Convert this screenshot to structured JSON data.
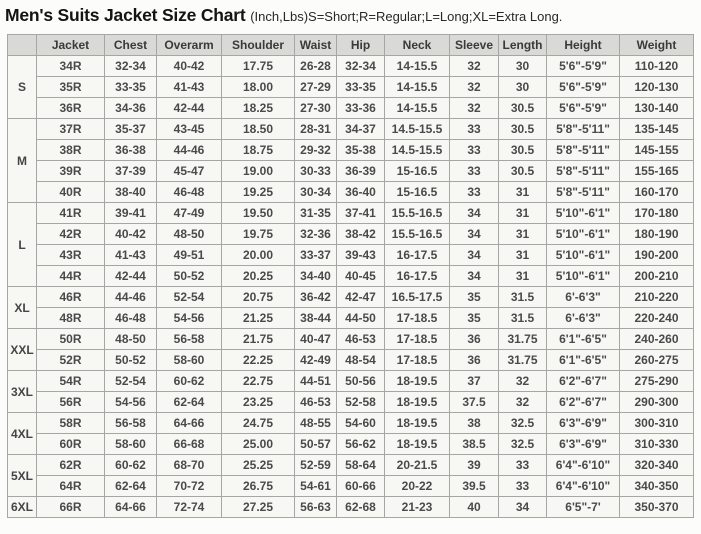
{
  "title": {
    "main": "Men's Suits Jacket Size Chart",
    "note": "(Inch,Lbs)S=Short;R=Regular;L=Long;XL=Extra Long."
  },
  "colors": {
    "header_bg": "#d9d9d6",
    "cell_bg": "#f7f7f4",
    "border": "#a6a6a4",
    "text": "#4a4a4a"
  },
  "table": {
    "columns": [
      "",
      "Jacket",
      "Chest",
      "Overarm",
      "Shoulder",
      "Waist",
      "Hip",
      "Neck",
      "Sleeve",
      "Length",
      "Height",
      "Weight"
    ],
    "groups": [
      {
        "size": "S",
        "rows": [
          [
            "34R",
            "32-34",
            "40-42",
            "17.75",
            "26-28",
            "32-34",
            "14-15.5",
            "32",
            "30",
            "5'6\"-5'9\"",
            "110-120"
          ],
          [
            "35R",
            "33-35",
            "41-43",
            "18.00",
            "27-29",
            "33-35",
            "14-15.5",
            "32",
            "30",
            "5'6\"-5'9\"",
            "120-130"
          ],
          [
            "36R",
            "34-36",
            "42-44",
            "18.25",
            "27-30",
            "33-36",
            "14-15.5",
            "32",
            "30.5",
            "5'6\"-5'9\"",
            "130-140"
          ]
        ]
      },
      {
        "size": "M",
        "rows": [
          [
            "37R",
            "35-37",
            "43-45",
            "18.50",
            "28-31",
            "34-37",
            "14.5-15.5",
            "33",
            "30.5",
            "5'8\"-5'11\"",
            "135-145"
          ],
          [
            "38R",
            "36-38",
            "44-46",
            "18.75",
            "29-32",
            "35-38",
            "14.5-15.5",
            "33",
            "30.5",
            "5'8\"-5'11\"",
            "145-155"
          ],
          [
            "39R",
            "37-39",
            "45-47",
            "19.00",
            "30-33",
            "36-39",
            "15-16.5",
            "33",
            "30.5",
            "5'8\"-5'11\"",
            "155-165"
          ],
          [
            "40R",
            "38-40",
            "46-48",
            "19.25",
            "30-34",
            "36-40",
            "15-16.5",
            "33",
            "31",
            "5'8\"-5'11\"",
            "160-170"
          ]
        ]
      },
      {
        "size": "L",
        "rows": [
          [
            "41R",
            "39-41",
            "47-49",
            "19.50",
            "31-35",
            "37-41",
            "15.5-16.5",
            "34",
            "31",
            "5'10\"-6'1\"",
            "170-180"
          ],
          [
            "42R",
            "40-42",
            "48-50",
            "19.75",
            "32-36",
            "38-42",
            "15.5-16.5",
            "34",
            "31",
            "5'10\"-6'1\"",
            "180-190"
          ],
          [
            "43R",
            "41-43",
            "49-51",
            "20.00",
            "33-37",
            "39-43",
            "16-17.5",
            "34",
            "31",
            "5'10\"-6'1\"",
            "190-200"
          ],
          [
            "44R",
            "42-44",
            "50-52",
            "20.25",
            "34-40",
            "40-45",
            "16-17.5",
            "34",
            "31",
            "5'10\"-6'1\"",
            "200-210"
          ]
        ]
      },
      {
        "size": "XL",
        "rows": [
          [
            "46R",
            "44-46",
            "52-54",
            "20.75",
            "36-42",
            "42-47",
            "16.5-17.5",
            "35",
            "31.5",
            "6'-6'3\"",
            "210-220"
          ],
          [
            "48R",
            "46-48",
            "54-56",
            "21.25",
            "38-44",
            "44-50",
            "17-18.5",
            "35",
            "31.5",
            "6'-6'3\"",
            "220-240"
          ]
        ]
      },
      {
        "size": "XXL",
        "rows": [
          [
            "50R",
            "48-50",
            "56-58",
            "21.75",
            "40-47",
            "46-53",
            "17-18.5",
            "36",
            "31.75",
            "6'1\"-6'5\"",
            "240-260"
          ],
          [
            "52R",
            "50-52",
            "58-60",
            "22.25",
            "42-49",
            "48-54",
            "17-18.5",
            "36",
            "31.75",
            "6'1\"-6'5\"",
            "260-275"
          ]
        ]
      },
      {
        "size": "3XL",
        "rows": [
          [
            "54R",
            "52-54",
            "60-62",
            "22.75",
            "44-51",
            "50-56",
            "18-19.5",
            "37",
            "32",
            "6'2\"-6'7\"",
            "275-290"
          ],
          [
            "56R",
            "54-56",
            "62-64",
            "23.25",
            "46-53",
            "52-58",
            "18-19.5",
            "37.5",
            "32",
            "6'2\"-6'7\"",
            "290-300"
          ]
        ]
      },
      {
        "size": "4XL",
        "rows": [
          [
            "58R",
            "56-58",
            "64-66",
            "24.75",
            "48-55",
            "54-60",
            "18-19.5",
            "38",
            "32.5",
            "6'3\"-6'9\"",
            "300-310"
          ],
          [
            "60R",
            "58-60",
            "66-68",
            "25.00",
            "50-57",
            "56-62",
            "18-19.5",
            "38.5",
            "32.5",
            "6'3\"-6'9\"",
            "310-330"
          ]
        ]
      },
      {
        "size": "5XL",
        "rows": [
          [
            "62R",
            "60-62",
            "68-70",
            "25.25",
            "52-59",
            "58-64",
            "20-21.5",
            "39",
            "33",
            "6'4\"-6'10\"",
            "320-340"
          ],
          [
            "64R",
            "62-64",
            "70-72",
            "26.75",
            "54-61",
            "60-66",
            "20-22",
            "39.5",
            "33",
            "6'4\"-6'10\"",
            "340-350"
          ]
        ]
      },
      {
        "size": "6XL",
        "rows": [
          [
            "66R",
            "64-66",
            "72-74",
            "27.25",
            "56-63",
            "62-68",
            "21-23",
            "40",
            "34",
            "6'5\"-7'",
            "350-370"
          ]
        ]
      }
    ]
  }
}
